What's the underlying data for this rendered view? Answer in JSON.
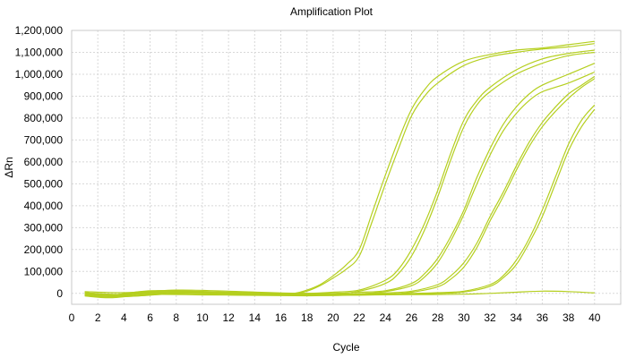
{
  "chart_data": {
    "type": "line",
    "title": "Amplification Plot",
    "xlabel": "Cycle",
    "ylabel": "ΔRn",
    "xlim": [
      0,
      42
    ],
    "ylim": [
      -50000,
      1200000
    ],
    "x_ticks": [
      0,
      2,
      4,
      6,
      8,
      10,
      12,
      14,
      16,
      18,
      20,
      22,
      24,
      26,
      28,
      30,
      32,
      34,
      36,
      38,
      40
    ],
    "y_ticks": [
      0,
      100000,
      200000,
      300000,
      400000,
      500000,
      600000,
      700000,
      800000,
      900000,
      1000000,
      1100000,
      1200000
    ],
    "y_tick_labels": [
      "0",
      "100,000",
      "200,000",
      "300,000",
      "400,000",
      "500,000",
      "600,000",
      "700,000",
      "800,000",
      "900,000",
      "1,000,000",
      "1,100,000",
      "1,200,000"
    ],
    "grid": true,
    "line_color": "#b5cf1f",
    "series": [
      {
        "x": [
          1,
          3,
          6,
          9,
          12,
          15,
          17,
          18,
          19,
          20,
          21,
          22,
          23,
          24,
          25,
          26,
          27,
          28,
          30,
          32,
          34,
          36,
          38,
          40
        ],
        "values": [
          5000,
          -10000,
          8000,
          5000,
          0,
          -5000,
          0,
          15000,
          40000,
          80000,
          130000,
          200000,
          370000,
          540000,
          700000,
          840000,
          930000,
          990000,
          1060000,
          1090000,
          1110000,
          1120000,
          1135000,
          1150000
        ]
      },
      {
        "x": [
          1,
          3,
          6,
          9,
          12,
          15,
          17,
          18,
          19,
          20,
          21,
          22,
          23,
          24,
          25,
          26,
          27,
          28,
          30,
          32,
          34,
          36,
          38,
          40
        ],
        "values": [
          -5000,
          -15000,
          5000,
          3000,
          -2000,
          -6000,
          -3000,
          10000,
          35000,
          70000,
          110000,
          170000,
          330000,
          500000,
          660000,
          810000,
          900000,
          960000,
          1040000,
          1080000,
          1100000,
          1115000,
          1125000,
          1140000
        ]
      },
      {
        "x": [
          1,
          3,
          6,
          10,
          14,
          18,
          20,
          22,
          24,
          25,
          26,
          27,
          28,
          29,
          30,
          31,
          32,
          34,
          36,
          38,
          40
        ],
        "values": [
          0,
          -8000,
          12000,
          8000,
          3000,
          0,
          5000,
          15000,
          60000,
          110000,
          200000,
          320000,
          470000,
          640000,
          790000,
          880000,
          940000,
          1020000,
          1070000,
          1095000,
          1110000
        ]
      },
      {
        "x": [
          1,
          3,
          6,
          10,
          14,
          18,
          20,
          22,
          24,
          25,
          26,
          27,
          28,
          29,
          30,
          31,
          32,
          34,
          36,
          38,
          40
        ],
        "values": [
          -10000,
          -18000,
          2000,
          0,
          -4000,
          -8000,
          -3000,
          10000,
          45000,
          90000,
          170000,
          290000,
          440000,
          610000,
          760000,
          860000,
          920000,
          1000000,
          1050000,
          1085000,
          1100000
        ]
      },
      {
        "x": [
          1,
          4,
          8,
          12,
          16,
          20,
          22,
          24,
          26,
          27,
          28,
          29,
          30,
          31,
          32,
          33,
          34,
          35,
          36,
          38,
          40
        ],
        "values": [
          8000,
          3000,
          15000,
          10000,
          2000,
          0,
          5000,
          12000,
          45000,
          90000,
          160000,
          260000,
          380000,
          530000,
          660000,
          770000,
          850000,
          910000,
          950000,
          1000000,
          1050000
        ]
      },
      {
        "x": [
          1,
          4,
          8,
          12,
          16,
          20,
          22,
          24,
          26,
          27,
          28,
          29,
          30,
          31,
          32,
          33,
          34,
          35,
          36,
          38,
          40
        ],
        "values": [
          -3000,
          -12000,
          4000,
          2000,
          -3000,
          -6000,
          -2000,
          8000,
          35000,
          75000,
          140000,
          240000,
          360000,
          500000,
          630000,
          740000,
          820000,
          880000,
          920000,
          960000,
          1010000
        ]
      },
      {
        "x": [
          1,
          4,
          8,
          12,
          16,
          20,
          24,
          26,
          28,
          29,
          30,
          31,
          32,
          33,
          34,
          35,
          36,
          37,
          38,
          39,
          40
        ],
        "values": [
          3000,
          -5000,
          10000,
          5000,
          0,
          -4000,
          2000,
          10000,
          40000,
          80000,
          140000,
          230000,
          350000,
          460000,
          580000,
          690000,
          780000,
          850000,
          910000,
          950000,
          990000
        ]
      },
      {
        "x": [
          1,
          4,
          8,
          12,
          16,
          20,
          24,
          26,
          28,
          29,
          30,
          31,
          32,
          33,
          34,
          35,
          36,
          37,
          38,
          39,
          40
        ],
        "values": [
          -8000,
          -15000,
          0,
          -2000,
          -6000,
          -9000,
          -4000,
          5000,
          30000,
          65000,
          120000,
          210000,
          330000,
          440000,
          560000,
          670000,
          760000,
          830000,
          890000,
          940000,
          980000
        ]
      },
      {
        "x": [
          1,
          4,
          8,
          12,
          16,
          20,
          24,
          28,
          30,
          32,
          33,
          34,
          35,
          36,
          37,
          38,
          39,
          40
        ],
        "values": [
          2000,
          -6000,
          6000,
          3000,
          -2000,
          -5000,
          -3000,
          3000,
          10000,
          40000,
          80000,
          150000,
          250000,
          380000,
          530000,
          680000,
          790000,
          860000
        ]
      },
      {
        "x": [
          1,
          4,
          8,
          12,
          16,
          20,
          24,
          28,
          30,
          32,
          33,
          34,
          35,
          36,
          37,
          38,
          39,
          40
        ],
        "values": [
          -6000,
          -14000,
          -2000,
          -4000,
          -7000,
          -9000,
          -6000,
          0,
          6000,
          32000,
          70000,
          130000,
          230000,
          350000,
          500000,
          650000,
          760000,
          840000
        ]
      },
      {
        "x": [
          1,
          3,
          6,
          10,
          14,
          18,
          22,
          26,
          30,
          32,
          34,
          36,
          38,
          40
        ],
        "values": [
          -12000,
          -20000,
          -5000,
          -7000,
          -9000,
          -11000,
          -8000,
          -6000,
          -4000,
          0,
          5000,
          10000,
          8000,
          2000
        ]
      }
    ]
  }
}
